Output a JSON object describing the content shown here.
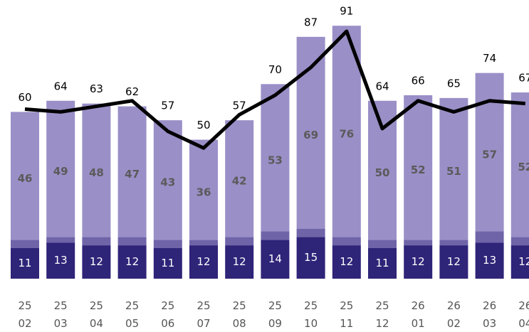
{
  "chart_data": {
    "type": "stacked_bar_line",
    "categories": [
      [
        "25",
        "02"
      ],
      [
        "25",
        "03"
      ],
      [
        "25",
        "04"
      ],
      [
        "25",
        "05"
      ],
      [
        "25",
        "06"
      ],
      [
        "25",
        "07"
      ],
      [
        "25",
        "08"
      ],
      [
        "25",
        "09"
      ],
      [
        "25",
        "10"
      ],
      [
        "25",
        "11"
      ],
      [
        "25",
        "12"
      ],
      [
        "26",
        "01"
      ],
      [
        "26",
        "02"
      ],
      [
        "26",
        "03"
      ],
      [
        "26",
        "04"
      ]
    ],
    "series": [
      {
        "name": null,
        "color": "#2e2478",
        "values": [
          11,
          13,
          12,
          12,
          11,
          12,
          12,
          14,
          15,
          12,
          11,
          12,
          12,
          13,
          12
        ]
      },
      {
        "name": null,
        "color": "#6f64a8",
        "values": [
          3,
          2,
          3,
          3,
          3,
          2,
          3,
          3,
          3,
          3,
          3,
          2,
          2,
          4,
          3
        ]
      },
      {
        "name": null,
        "color": "#9b8fc7",
        "values": [
          46,
          49,
          48,
          47,
          43,
          36,
          42,
          53,
          69,
          76,
          50,
          52,
          51,
          57,
          52
        ]
      }
    ],
    "totals": [
      60,
      64,
      63,
      62,
      57,
      50,
      57,
      70,
      87,
      91,
      64,
      66,
      65,
      74,
      67
    ],
    "line": {
      "color": "#000000",
      "values": [
        61,
        60,
        62,
        64,
        53,
        47,
        59,
        66,
        76,
        89,
        54,
        64,
        60,
        64,
        63
      ]
    },
    "ylim": [
      0,
      100
    ]
  }
}
